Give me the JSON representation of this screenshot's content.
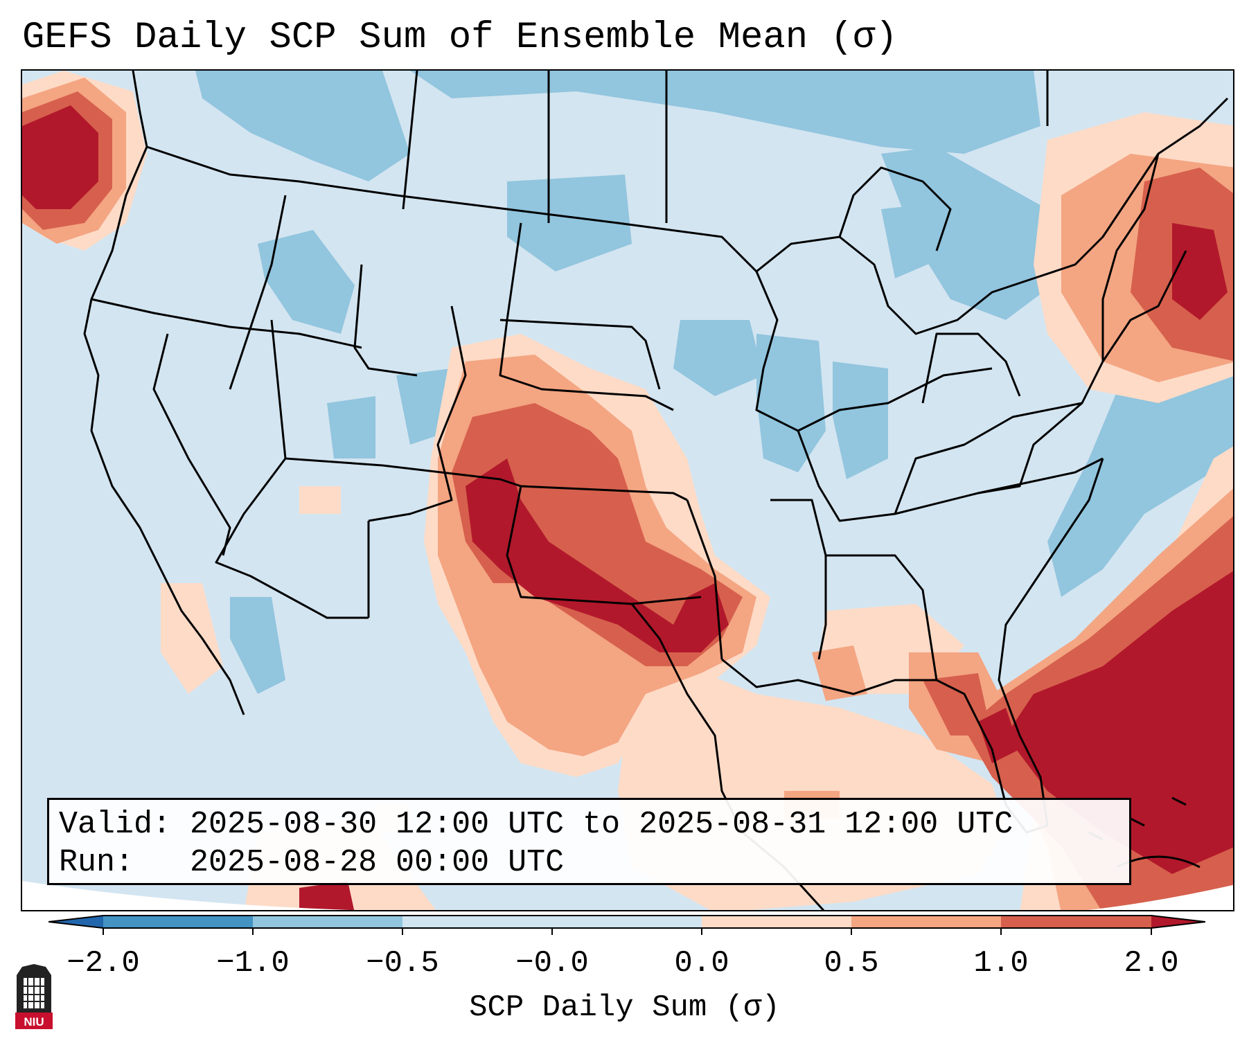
{
  "title": "GEFS Daily SCP Sum of Ensemble Mean (σ)",
  "info": {
    "valid_label": "Valid:",
    "valid_value": "2025-08-30 12:00 UTC to 2025-08-31 12:00 UTC",
    "run_label": "Run:",
    "run_value": "2025-08-28 00:00 UTC"
  },
  "colorbar": {
    "label": "SCP Daily Sum (σ)",
    "ticks": [
      "−2.0",
      "−1.0",
      "−0.5",
      "−0.0",
      "0.0",
      "0.5",
      "1.0",
      "2.0"
    ],
    "colors": {
      "under": "#2166ac",
      "bin_neg2_neg1": "#4393c3",
      "bin_neg1_neg05": "#92c5de",
      "bin_neg05_0": "#d1e5f0",
      "bin_0_05": "#fddbc7",
      "bin_05_1": "#f4a582",
      "bin_1_2": "#d6604d",
      "over": "#b2182b"
    }
  },
  "logo": {
    "text": "NIU"
  },
  "icons": {
    "logo": "university-tower-icon"
  }
}
